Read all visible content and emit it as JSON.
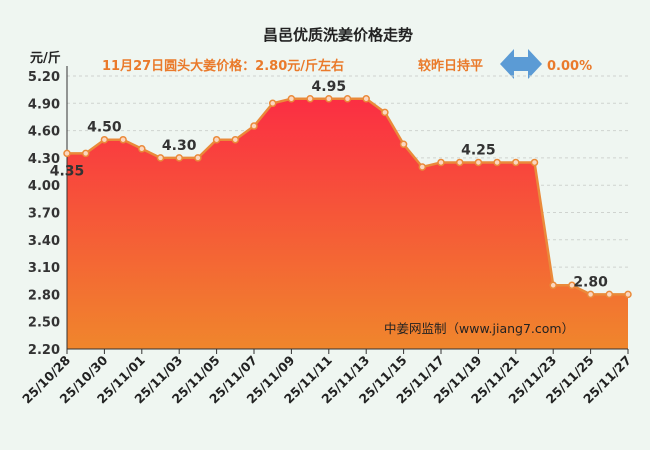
{
  "header": {
    "title": "昌邑优质洗姜价格走势",
    "unit": "元/斤",
    "price_note": "11月27日圆头大姜价格：2.80元/斤左右",
    "compare_label": "较昨日持平",
    "change": "0.00%",
    "watermark": "中姜网监制（www.jiang7.com）"
  },
  "colors": {
    "line": "#ea8a3a",
    "area_top": "#fb2e43",
    "area_bottom": "#f0862c",
    "accent_text": "#ea7a2b",
    "arrow": "#5b9bd5"
  },
  "chart_data": {
    "type": "area",
    "title": "昌邑优质洗姜价格走势",
    "ylabel": "元/斤",
    "ylim": [
      2.2,
      5.2
    ],
    "yticks": [
      "5.20",
      "4.90",
      "4.60",
      "4.30",
      "4.00",
      "3.70",
      "3.40",
      "3.10",
      "2.80",
      "2.50",
      "2.20"
    ],
    "grid": true,
    "x": [
      "25/10/28",
      "25/10/29",
      "25/10/30",
      "25/10/31",
      "25/11/01",
      "25/11/02",
      "25/11/03",
      "25/11/04",
      "25/11/05",
      "25/11/06",
      "25/11/07",
      "25/11/08",
      "25/11/09",
      "25/11/10",
      "25/11/11",
      "25/11/12",
      "25/11/13",
      "25/11/14",
      "25/11/15",
      "25/11/16",
      "25/11/17",
      "25/11/18",
      "25/11/19",
      "25/11/20",
      "25/11/21",
      "25/11/22",
      "25/11/23",
      "25/11/24",
      "25/11/25",
      "25/11/26",
      "25/11/27"
    ],
    "xtick_labels": [
      "25/10/28",
      "25/10/30",
      "25/11/01",
      "25/11/03",
      "25/11/05",
      "25/11/07",
      "25/11/09",
      "25/11/11",
      "25/11/13",
      "25/11/15",
      "25/11/17",
      "25/11/19",
      "25/11/21",
      "25/11/23",
      "25/11/25",
      "25/11/27"
    ],
    "series": [
      {
        "values": [
          4.35,
          4.35,
          4.5,
          4.5,
          4.4,
          4.3,
          4.3,
          4.3,
          4.5,
          4.5,
          4.65,
          4.9,
          4.95,
          4.95,
          4.95,
          4.95,
          4.95,
          4.8,
          4.45,
          4.2,
          4.25,
          4.25,
          4.25,
          4.25,
          4.25,
          4.25,
          2.9,
          2.9,
          2.8,
          2.8,
          2.8
        ]
      }
    ],
    "data_labels": [
      {
        "x": "25/10/28",
        "text": "4.35"
      },
      {
        "x": "25/10/30",
        "text": "4.50"
      },
      {
        "x": "25/11/03",
        "text": "4.30"
      },
      {
        "x": "25/11/11",
        "text": "4.95"
      },
      {
        "x": "25/11/19",
        "text": "4.25"
      },
      {
        "x": "25/11/25",
        "text": "2.80"
      }
    ]
  }
}
